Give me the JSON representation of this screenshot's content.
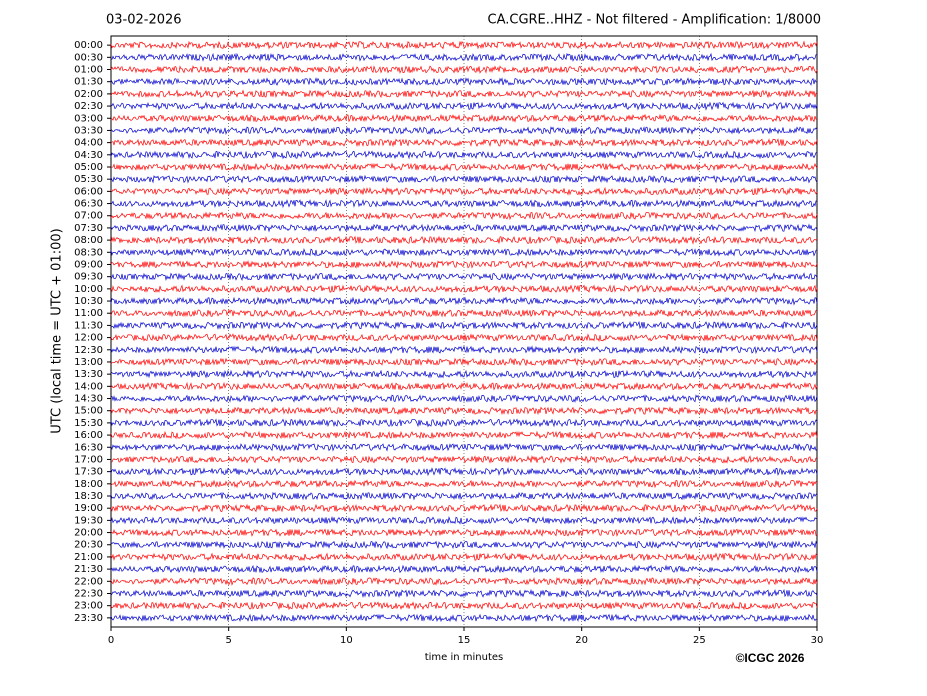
{
  "chart_data": {
    "type": "helicorder",
    "date": "03-02-2026",
    "title": "CA.CGRE..HHZ - Not filtered - Amplification: 1/8000",
    "ylabel": "UTC (local time = UTC + 01:00)",
    "xlabel": "time in minutes",
    "copyright": "©ICGC 2026",
    "categories": [
      "00:00",
      "00:30",
      "01:00",
      "01:30",
      "02:00",
      "02:30",
      "03:00",
      "03:30",
      "04:00",
      "04:30",
      "05:00",
      "05:30",
      "06:00",
      "06:30",
      "07:00",
      "07:30",
      "08:00",
      "08:30",
      "09:00",
      "09:30",
      "10:00",
      "10:30",
      "11:00",
      "11:30",
      "12:00",
      "12:30",
      "13:00",
      "13:30",
      "14:00",
      "14:30",
      "15:00",
      "15:30",
      "16:00",
      "16:30",
      "17:00",
      "17:30",
      "18:00",
      "18:30",
      "19:00",
      "19:30",
      "20:00",
      "20:30",
      "21:00",
      "21:30",
      "22:00",
      "22:30",
      "23:00",
      "23:30"
    ],
    "colors": [
      "#ff0000",
      "#0000cc"
    ],
    "xlim": [
      0,
      30
    ],
    "xticks": [
      0,
      5,
      10,
      15,
      20,
      25,
      30
    ],
    "grid": true
  }
}
